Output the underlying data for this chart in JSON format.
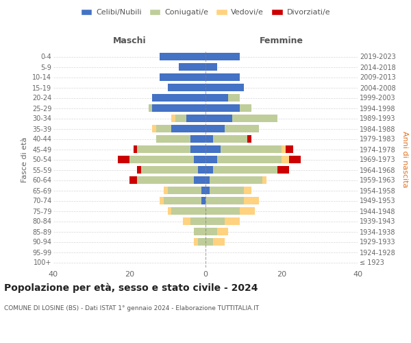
{
  "age_groups": [
    "100+",
    "95-99",
    "90-94",
    "85-89",
    "80-84",
    "75-79",
    "70-74",
    "65-69",
    "60-64",
    "55-59",
    "50-54",
    "45-49",
    "40-44",
    "35-39",
    "30-34",
    "25-29",
    "20-24",
    "15-19",
    "10-14",
    "5-9",
    "0-4"
  ],
  "birth_years": [
    "≤ 1923",
    "1924-1928",
    "1929-1933",
    "1934-1938",
    "1939-1943",
    "1944-1948",
    "1949-1953",
    "1954-1958",
    "1959-1963",
    "1964-1968",
    "1969-1973",
    "1974-1978",
    "1979-1983",
    "1984-1988",
    "1989-1993",
    "1994-1998",
    "1999-2003",
    "2004-2008",
    "2009-2013",
    "2014-2018",
    "2019-2023"
  ],
  "male": {
    "celibi": [
      0,
      0,
      0,
      0,
      0,
      0,
      1,
      1,
      3,
      2,
      3,
      4,
      4,
      9,
      5,
      14,
      14,
      10,
      12,
      7,
      12
    ],
    "coniugati": [
      0,
      0,
      2,
      3,
      4,
      9,
      10,
      9,
      15,
      15,
      17,
      14,
      9,
      4,
      3,
      1,
      0,
      0,
      0,
      0,
      0
    ],
    "vedovi": [
      0,
      0,
      1,
      0,
      2,
      1,
      1,
      1,
      0,
      0,
      0,
      0,
      0,
      1,
      1,
      0,
      0,
      0,
      0,
      0,
      0
    ],
    "divorziati": [
      0,
      0,
      0,
      0,
      0,
      0,
      0,
      0,
      2,
      1,
      3,
      1,
      0,
      0,
      0,
      0,
      0,
      0,
      0,
      0,
      0
    ]
  },
  "female": {
    "nubili": [
      0,
      0,
      0,
      0,
      0,
      0,
      0,
      1,
      1,
      2,
      3,
      4,
      2,
      5,
      7,
      9,
      6,
      10,
      9,
      3,
      9
    ],
    "coniugate": [
      0,
      0,
      2,
      3,
      5,
      9,
      10,
      9,
      14,
      17,
      17,
      16,
      9,
      9,
      12,
      3,
      3,
      0,
      0,
      0,
      0
    ],
    "vedove": [
      0,
      0,
      3,
      3,
      4,
      4,
      4,
      2,
      1,
      0,
      2,
      1,
      0,
      0,
      0,
      0,
      0,
      0,
      0,
      0,
      0
    ],
    "divorziate": [
      0,
      0,
      0,
      0,
      0,
      0,
      0,
      0,
      0,
      3,
      3,
      2,
      1,
      0,
      0,
      0,
      0,
      0,
      0,
      0,
      0
    ]
  },
  "colors": {
    "celibi_nubili": "#4472C4",
    "coniugati": "#BFCD9A",
    "vedovi": "#FFD280",
    "divorziati": "#CC0000"
  },
  "xlim": 40,
  "title": "Popolazione per età, sesso e stato civile - 2024",
  "subtitle": "COMUNE DI LOSINE (BS) - Dati ISTAT 1° gennaio 2024 - Elaborazione TUTTITALIA.IT",
  "xlabel_left": "Maschi",
  "xlabel_right": "Femmine",
  "ylabel_left": "Fasce di età",
  "ylabel_right": "Anni di nascita",
  "legend_labels": [
    "Celibi/Nubili",
    "Coniugati/e",
    "Vedovi/e",
    "Divorziati/e"
  ],
  "background_color": "#ffffff",
  "grid_color": "#cccccc"
}
